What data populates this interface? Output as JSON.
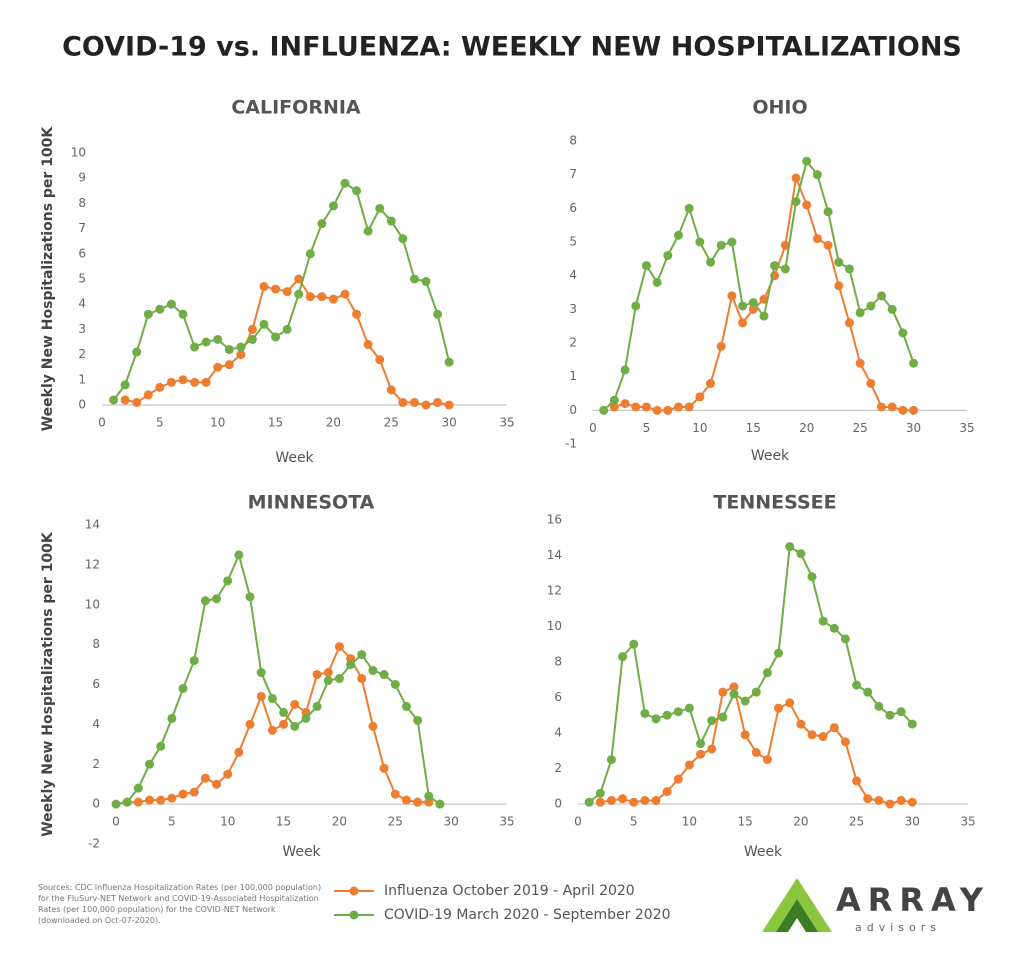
{
  "title": "COVID-19 vs. INFLUENZA: WEEKLY NEW HOSPITALIZATIONS",
  "sources": "Sources: CDC Influenza Hospitalization Rates (per 100,000 population) for the FluSurv-NET Network and COVID-19-Associated Hospitalization Rates (per 100,000 population) for the COVID-NET Network (downloaded on Oct-07-2020).",
  "logo": {
    "name": "ARRAY",
    "tagline": "advisors"
  },
  "chart_data": [
    {
      "type": "line",
      "title": "CALIFORNIA",
      "xlabel": "Week",
      "ylabel": "Weekly New Hospitalizations per 100K",
      "x": [
        1,
        2,
        3,
        4,
        5,
        6,
        7,
        8,
        9,
        10,
        11,
        12,
        13,
        14,
        15,
        16,
        17,
        18,
        19,
        20,
        21,
        22,
        23,
        24,
        25,
        26,
        27,
        28,
        29,
        30
      ],
      "series": [
        {
          "name": "Influenza October 2019 - April 2020",
          "color": "#ed7d31",
          "values": [
            null,
            0.2,
            0.1,
            0.4,
            0.7,
            0.9,
            1.0,
            0.9,
            0.9,
            1.5,
            1.6,
            2.0,
            3.0,
            4.7,
            4.6,
            4.5,
            5.0,
            4.3,
            4.3,
            4.2,
            4.4,
            3.6,
            2.4,
            1.8,
            0.6,
            0.1,
            0.1,
            0.0,
            0.1,
            0.0
          ]
        },
        {
          "name": "COVID-19 March 2020 - September 2020",
          "color": "#70ad47",
          "values": [
            0.2,
            0.8,
            2.1,
            3.6,
            3.8,
            4.0,
            3.6,
            2.3,
            2.5,
            2.6,
            2.2,
            2.3,
            2.6,
            3.2,
            2.7,
            3.0,
            4.4,
            6.0,
            7.2,
            7.9,
            8.8,
            8.5,
            6.9,
            7.8,
            7.3,
            6.6,
            5.0,
            4.9,
            3.6,
            1.7
          ]
        }
      ],
      "xlim": [
        0,
        35
      ],
      "xticks": [
        0,
        5,
        10,
        15,
        20,
        25,
        30,
        35
      ],
      "ylim": [
        0,
        10
      ],
      "yticks": [
        0,
        1,
        2,
        3,
        4,
        5,
        6,
        7,
        8,
        9,
        10
      ]
    },
    {
      "type": "line",
      "title": "OHIO",
      "xlabel": "Week",
      "x": [
        1,
        2,
        3,
        4,
        5,
        6,
        7,
        8,
        9,
        10,
        11,
        12,
        13,
        14,
        15,
        16,
        17,
        18,
        19,
        20,
        21,
        22,
        23,
        24,
        25,
        26,
        27,
        28,
        29,
        30
      ],
      "series": [
        {
          "color": "#ed7d31",
          "values": [
            null,
            0.1,
            0.2,
            0.1,
            0.1,
            0.0,
            0.0,
            0.1,
            0.1,
            0.4,
            0.8,
            1.9,
            3.4,
            2.6,
            3.0,
            3.3,
            4.0,
            4.9,
            6.9,
            6.1,
            5.1,
            4.9,
            3.7,
            2.6,
            1.4,
            0.8,
            0.1,
            0.1,
            0.0,
            0.0
          ]
        },
        {
          "color": "#70ad47",
          "values": [
            0.0,
            0.3,
            1.2,
            3.1,
            4.3,
            3.8,
            4.6,
            5.2,
            6.0,
            5.0,
            4.4,
            4.9,
            5.0,
            3.1,
            3.2,
            2.8,
            4.3,
            4.2,
            6.2,
            7.4,
            7.0,
            5.9,
            4.4,
            4.2,
            2.9,
            3.1,
            3.4,
            3.0,
            2.3,
            1.4
          ]
        }
      ],
      "xlim": [
        0,
        35
      ],
      "xticks": [
        0,
        5,
        10,
        15,
        20,
        25,
        30,
        35
      ],
      "ylim": [
        -1,
        8
      ],
      "yticks": [
        -1,
        0,
        1,
        2,
        3,
        4,
        5,
        6,
        7,
        8
      ]
    },
    {
      "type": "line",
      "title": "MINNESOTA",
      "xlabel": "Week",
      "ylabel": "Weekly New Hospitalizations per 100K",
      "x": [
        0,
        1,
        2,
        3,
        4,
        5,
        6,
        7,
        8,
        9,
        10,
        11,
        12,
        13,
        14,
        15,
        16,
        17,
        18,
        19,
        20,
        21,
        22,
        23,
        24,
        25,
        26,
        27,
        28,
        29
      ],
      "series": [
        {
          "color": "#ed7d31",
          "values": [
            null,
            0.1,
            0.1,
            0.2,
            0.2,
            0.3,
            0.5,
            0.6,
            1.3,
            1.0,
            1.5,
            2.6,
            4.0,
            5.4,
            3.7,
            4.0,
            5.0,
            4.6,
            6.5,
            6.6,
            7.9,
            7.3,
            6.3,
            3.9,
            1.8,
            0.5,
            0.2,
            0.1,
            0.1,
            null
          ]
        },
        {
          "color": "#70ad47",
          "values": [
            0,
            0.1,
            0.8,
            2.0,
            2.9,
            4.3,
            5.8,
            7.2,
            10.2,
            10.3,
            11.2,
            12.5,
            10.4,
            6.6,
            5.3,
            4.6,
            3.9,
            4.3,
            4.9,
            6.2,
            6.3,
            7.0,
            7.5,
            6.7,
            6.5,
            6.0,
            4.9,
            4.2,
            0.4,
            0.0
          ]
        }
      ],
      "xlim": [
        0,
        35
      ],
      "xticks": [
        0,
        5,
        10,
        15,
        20,
        25,
        30,
        35
      ],
      "ylim": [
        -2,
        14
      ],
      "yticks": [
        -2,
        0,
        2,
        4,
        6,
        8,
        10,
        12,
        14
      ]
    },
    {
      "type": "line",
      "title": "TENNESSEE",
      "xlabel": "Week",
      "x": [
        1,
        2,
        3,
        4,
        5,
        6,
        7,
        8,
        9,
        10,
        11,
        12,
        13,
        14,
        15,
        16,
        17,
        18,
        19,
        20,
        21,
        22,
        23,
        24,
        25,
        26,
        27,
        28,
        29,
        30
      ],
      "series": [
        {
          "color": "#ed7d31",
          "values": [
            null,
            0.1,
            0.2,
            0.3,
            0.1,
            0.2,
            0.2,
            0.7,
            1.4,
            2.2,
            2.8,
            3.1,
            6.3,
            6.6,
            3.9,
            2.9,
            2.5,
            5.4,
            5.7,
            4.5,
            3.9,
            3.8,
            4.3,
            3.5,
            1.3,
            0.3,
            0.2,
            0.0,
            0.2,
            0.1
          ]
        },
        {
          "color": "#70ad47",
          "values": [
            0.1,
            0.6,
            2.5,
            8.3,
            9.0,
            5.1,
            4.8,
            5.0,
            5.2,
            5.4,
            3.4,
            4.7,
            4.9,
            6.2,
            5.8,
            6.3,
            7.4,
            8.5,
            14.5,
            14.1,
            12.8,
            10.3,
            9.9,
            9.3,
            6.7,
            6.3,
            5.5,
            5.0,
            5.2,
            4.5
          ]
        }
      ],
      "xlim": [
        0,
        35
      ],
      "xticks": [
        0,
        5,
        10,
        15,
        20,
        25,
        30,
        35
      ],
      "ylim": [
        0,
        16
      ],
      "yticks": [
        0,
        2,
        4,
        6,
        8,
        10,
        12,
        14,
        16
      ]
    }
  ]
}
